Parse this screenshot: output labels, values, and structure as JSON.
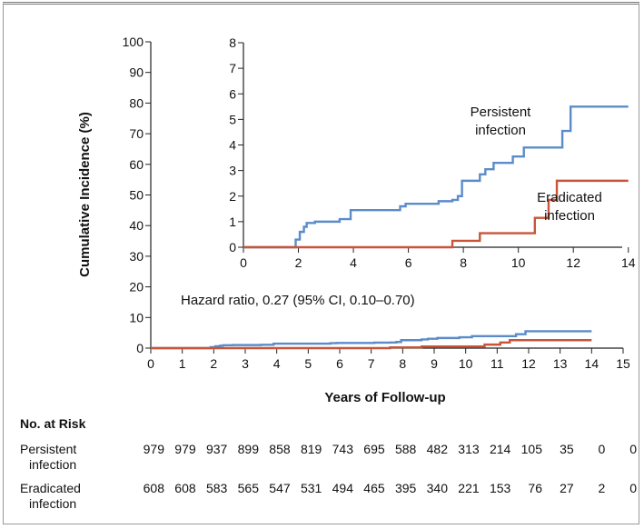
{
  "chart_data": [
    {
      "type": "line",
      "xlabel": "Years of Follow-up",
      "ylabel": "Cumulative Incidence (%)",
      "xlim": [
        0,
        15
      ],
      "ylim": [
        0,
        100
      ],
      "x_ticks": [
        "0",
        "1",
        "2",
        "3",
        "4",
        "5",
        "6",
        "7",
        "8",
        "9",
        "10",
        "11",
        "12",
        "13",
        "14",
        "15"
      ],
      "y_ticks": [
        "0",
        "10",
        "20",
        "30",
        "40",
        "50",
        "60",
        "70",
        "80",
        "90",
        "100"
      ],
      "annotation": "Hazard ratio, 0.27 (95% CI, 0.10–0.70)",
      "series": [
        {
          "id": "persistent",
          "color": "#5b8cc9",
          "x": [
            0,
            1.9,
            1.9,
            2.05,
            2.05,
            2.2,
            2.2,
            2.3,
            2.3,
            2.6,
            2.6,
            3.5,
            3.5,
            3.9,
            3.9,
            4.1,
            4.1,
            5.7,
            5.7,
            5.9,
            5.9,
            7.1,
            7.1,
            7.6,
            7.6,
            7.8,
            7.8,
            7.95,
            7.95,
            8.1,
            8.1,
            8.6,
            8.6,
            8.8,
            8.8,
            9.1,
            9.1,
            9.8,
            9.8,
            10.2,
            10.2,
            10.4,
            10.4,
            11.6,
            11.6,
            11.9,
            11.9,
            14.0
          ],
          "y": [
            0,
            0,
            0.3,
            0.3,
            0.6,
            0.6,
            0.8,
            0.8,
            0.95,
            0.95,
            1.0,
            1.0,
            1.1,
            1.1,
            1.45,
            1.45,
            1.45,
            1.45,
            1.6,
            1.6,
            1.7,
            1.7,
            1.8,
            1.8,
            1.85,
            1.85,
            2.0,
            2.0,
            2.6,
            2.6,
            2.6,
            2.6,
            2.85,
            2.85,
            3.05,
            3.05,
            3.3,
            3.3,
            3.55,
            3.55,
            3.9,
            3.9,
            3.9,
            3.9,
            4.55,
            4.55,
            5.5,
            5.5
          ]
        },
        {
          "id": "eradicated",
          "color": "#c8553a",
          "x": [
            0,
            7.6,
            7.6,
            8.6,
            8.6,
            10.6,
            10.6,
            11.1,
            11.1,
            11.4,
            11.4,
            11.6,
            11.6,
            14.0
          ],
          "y": [
            0,
            0,
            0.25,
            0.25,
            0.55,
            0.55,
            1.15,
            1.15,
            1.85,
            1.85,
            2.6,
            2.6,
            2.6,
            2.6
          ]
        }
      ]
    },
    {
      "type": "line",
      "role": "inset",
      "xlim": [
        0,
        15
      ],
      "ylim": [
        0,
        8
      ],
      "x_ticks": [
        "0",
        "2",
        "4",
        "6",
        "8",
        "10",
        "12",
        "14"
      ],
      "y_ticks": [
        "0",
        "1",
        "2",
        "3",
        "4",
        "5",
        "6",
        "7",
        "8"
      ],
      "series": [
        {
          "id": "persistent",
          "name": "Persistent infection",
          "color": "#5b8cc9"
        },
        {
          "id": "eradicated",
          "name": "Eradicated infection",
          "color": "#c8553a"
        }
      ]
    }
  ],
  "risk_table": {
    "title": "No. at Risk",
    "rows": [
      {
        "label_line1": "Persistent",
        "label_line2": "infection",
        "values": [
          "979",
          "979",
          "937",
          "899",
          "858",
          "819",
          "743",
          "695",
          "588",
          "482",
          "313",
          "214",
          "105",
          "35",
          "0",
          "0"
        ]
      },
      {
        "label_line1": "Eradicated",
        "label_line2": "infection",
        "values": [
          "608",
          "608",
          "583",
          "565",
          "547",
          "531",
          "494",
          "465",
          "395",
          "340",
          "221",
          "153",
          "76",
          "27",
          "2",
          "0"
        ]
      }
    ]
  }
}
